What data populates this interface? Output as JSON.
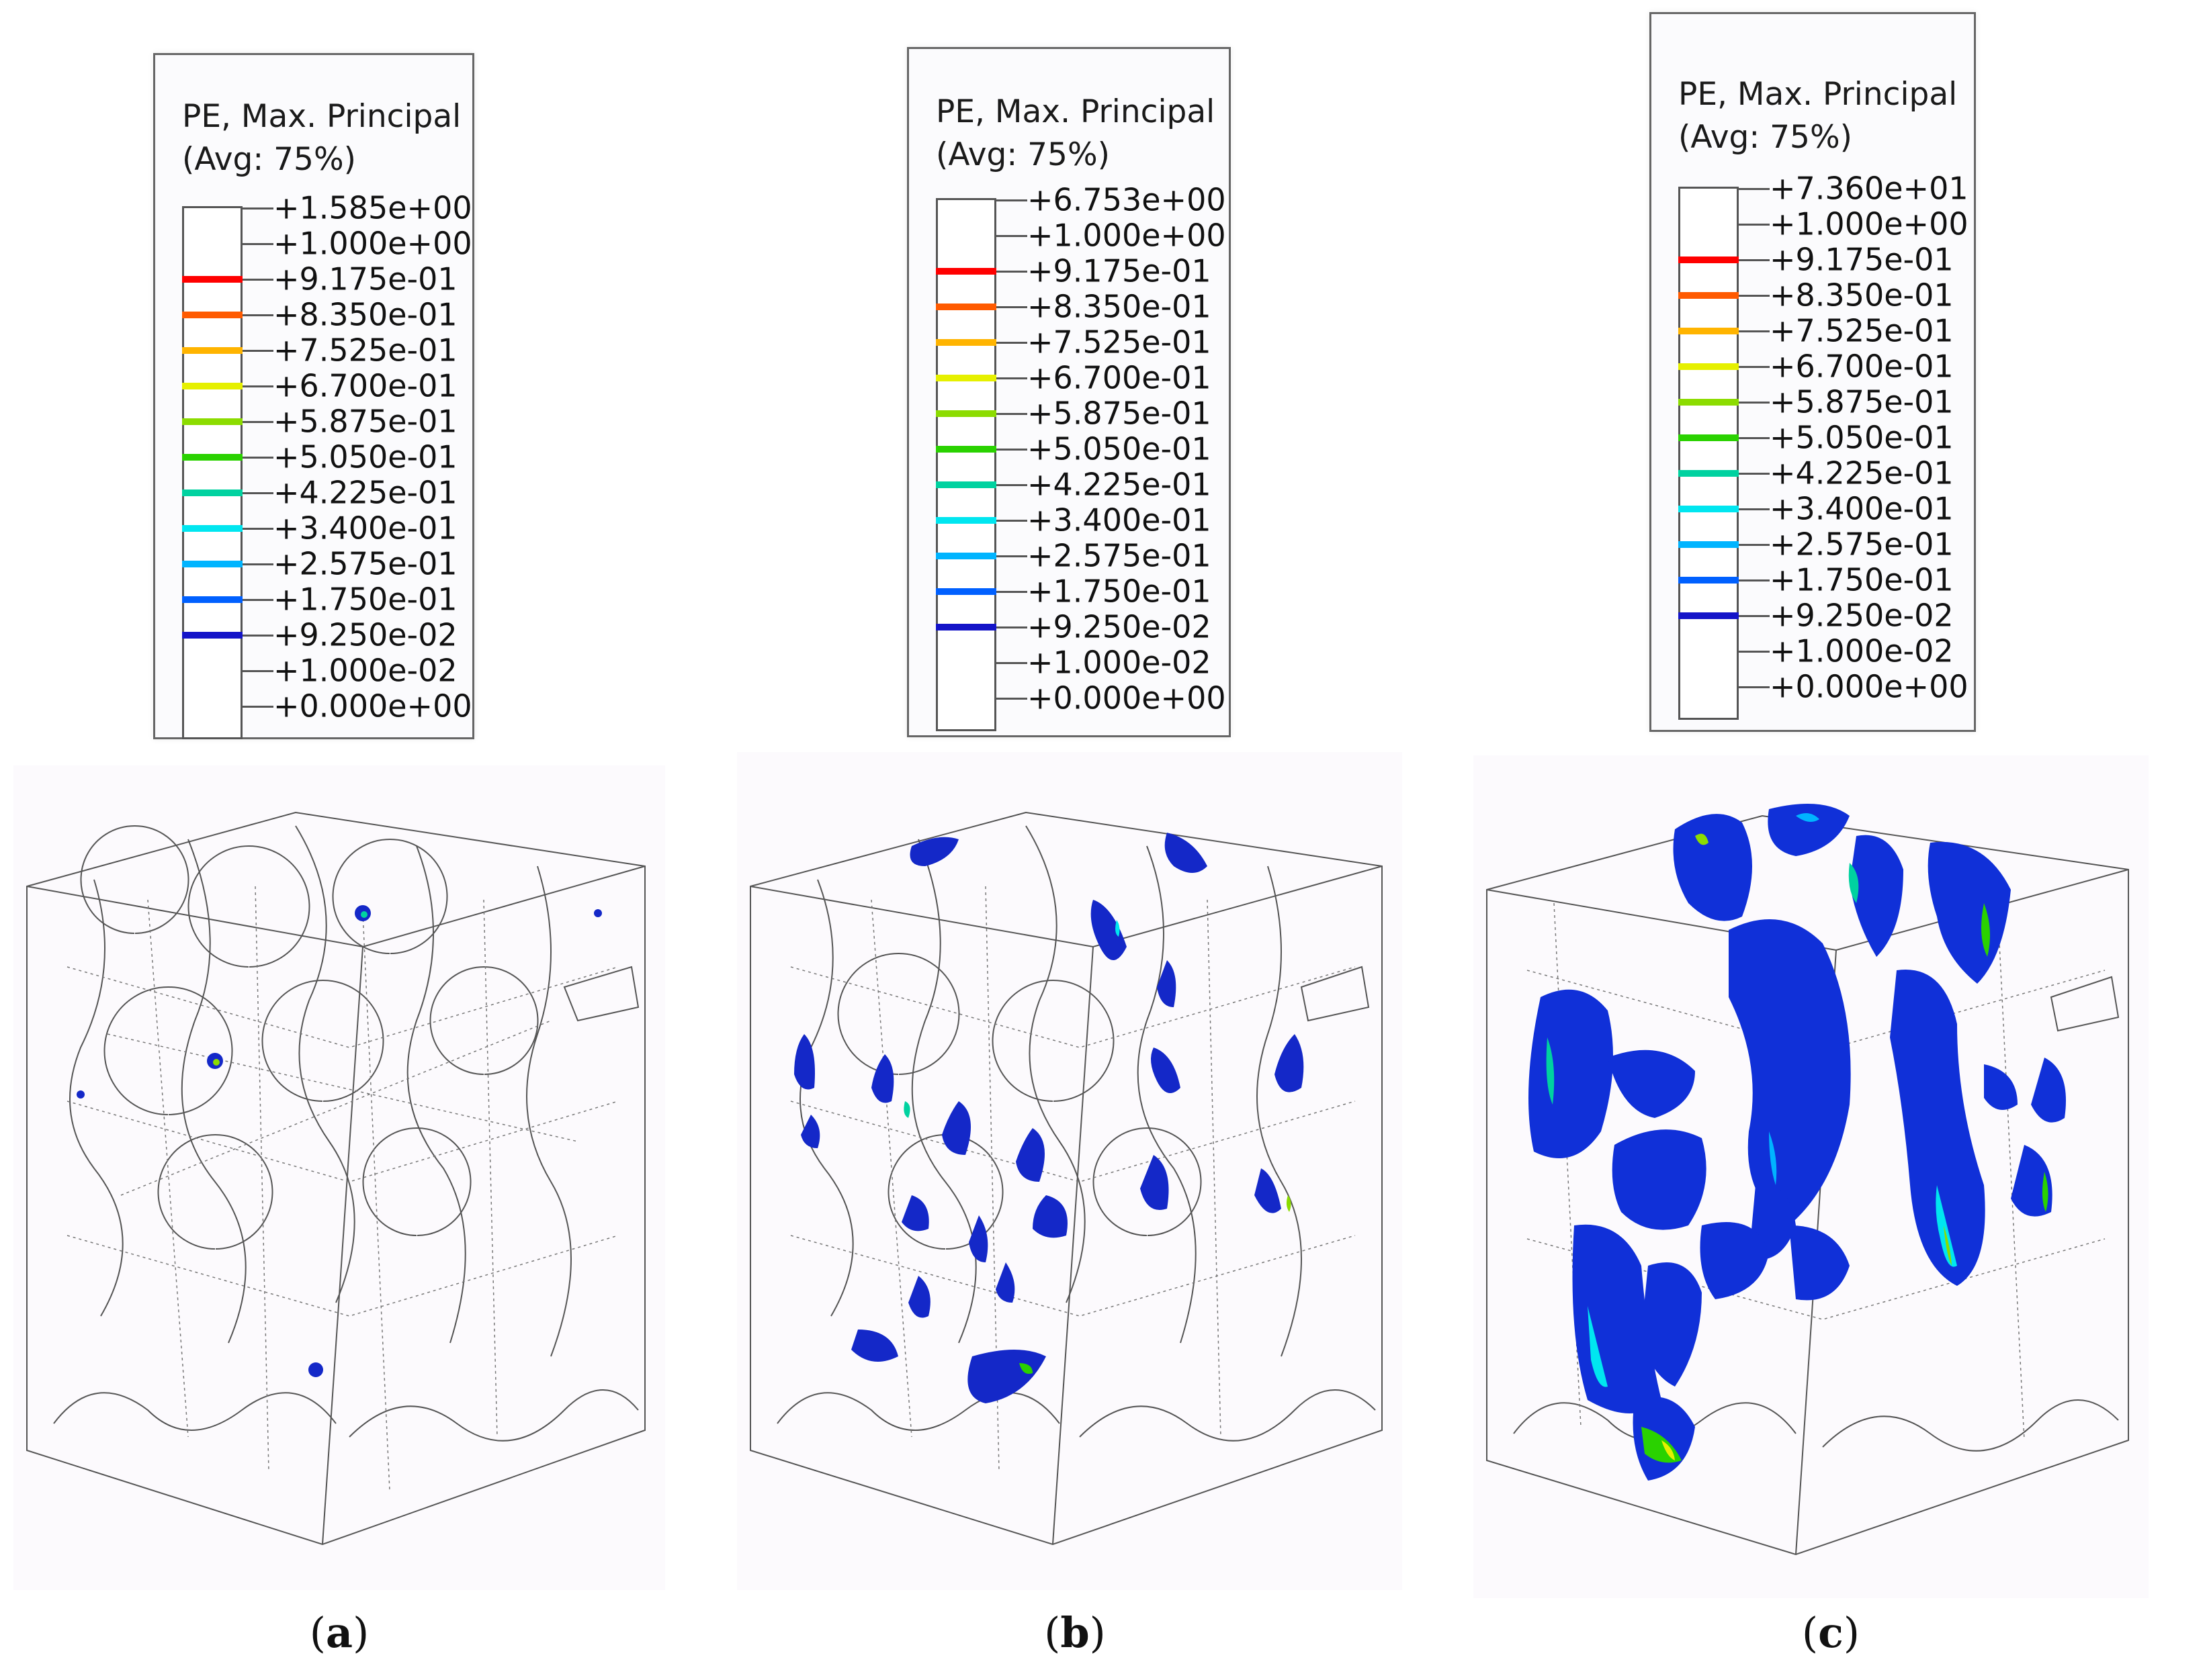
{
  "legend_title_line1": "PE, Max. Principal",
  "legend_title_line2": "(Avg: 75%)",
  "legend_colors": [
    "#ffffff",
    "#ffffff",
    "#ff0000",
    "#ff5a00",
    "#ffb400",
    "#e6f000",
    "#8cdc00",
    "#2ad200",
    "#00d2a0",
    "#00e6f0",
    "#00b4ff",
    "#0060ff",
    "#1414c8",
    "#ffffff",
    "#ffffff"
  ],
  "panels": [
    {
      "caption": "a",
      "legend_values": [
        "+1.585e+00",
        "+1.000e+00",
        "+9.175e-01",
        "+8.350e-01",
        "+7.525e-01",
        "+6.700e-01",
        "+5.875e-01",
        "+5.050e-01",
        "+4.225e-01",
        "+3.400e-01",
        "+2.575e-01",
        "+1.750e-01",
        "+9.250e-02",
        "+1.000e-02",
        "+0.000e+00"
      ]
    },
    {
      "caption": "b",
      "legend_values": [
        "+6.753e+00",
        "+1.000e+00",
        "+9.175e-01",
        "+8.350e-01",
        "+7.525e-01",
        "+6.700e-01",
        "+5.875e-01",
        "+5.050e-01",
        "+4.225e-01",
        "+3.400e-01",
        "+2.575e-01",
        "+1.750e-01",
        "+9.250e-02",
        "+1.000e-02",
        "+0.000e+00"
      ]
    },
    {
      "caption": "c",
      "legend_values": [
        "+7.360e+01",
        "+1.000e+00",
        "+9.175e-01",
        "+8.350e-01",
        "+7.525e-01",
        "+6.700e-01",
        "+5.875e-01",
        "+5.050e-01",
        "+4.225e-01",
        "+3.400e-01",
        "+2.575e-01",
        "+1.750e-01",
        "+9.250e-02",
        "+1.000e-02",
        "+0.000e+00"
      ]
    }
  ]
}
